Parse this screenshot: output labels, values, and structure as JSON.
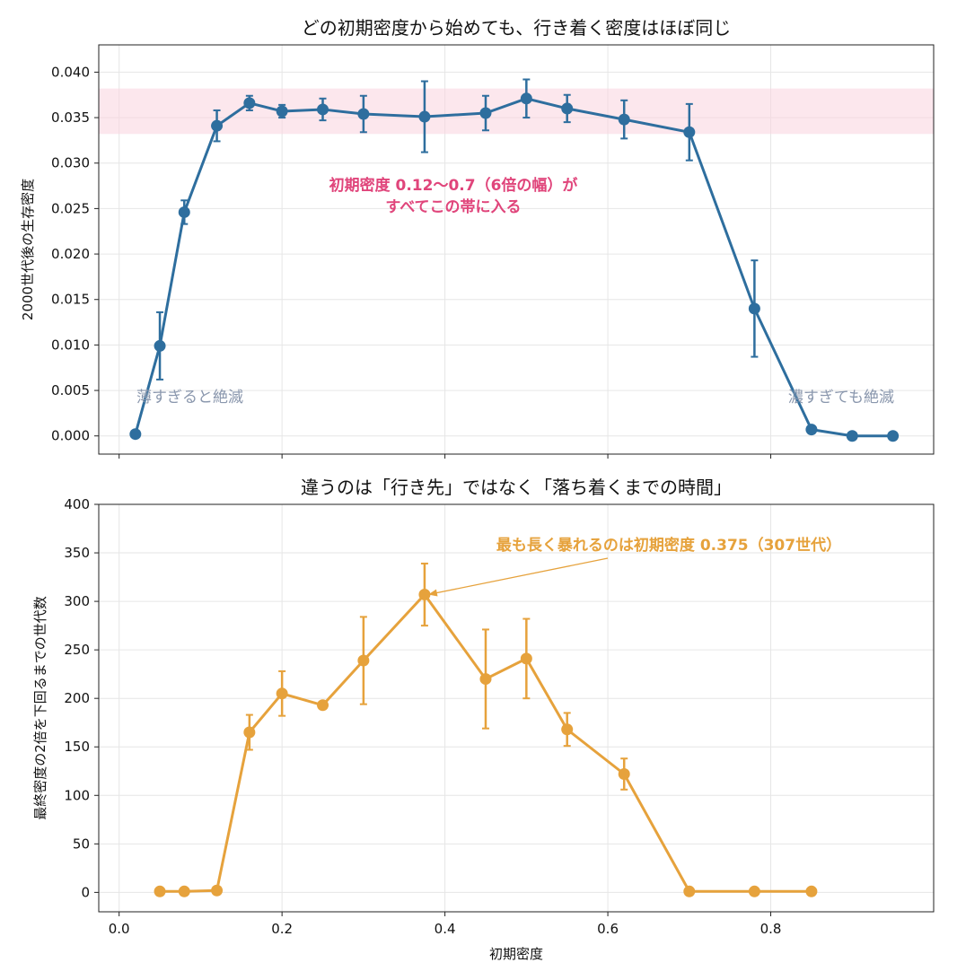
{
  "chart_data": [
    {
      "type": "line",
      "title": "どの初期密度から始めても、行き着く密度はほぼ同じ",
      "xlabel": "",
      "ylabel": "2000世代後の生存密度",
      "xlim": [
        -0.025,
        1.0
      ],
      "ylim": [
        -0.002,
        0.043
      ],
      "x_ticks": [
        0.0,
        0.2,
        0.4,
        0.6,
        0.8
      ],
      "y_ticks": [
        "0.000",
        "0.005",
        "0.010",
        "0.015",
        "0.020",
        "0.025",
        "0.030",
        "0.035",
        "0.040"
      ],
      "grid": true,
      "color": "#2e6e9e",
      "band": {
        "y0": 0.0332,
        "y1": 0.0382,
        "color": "#f9d3de"
      },
      "series": [
        {
          "x": [
            0.02,
            0.05,
            0.08,
            0.12,
            0.16,
            0.2,
            0.25,
            0.3,
            0.375,
            0.45,
            0.5,
            0.55,
            0.62,
            0.7,
            0.78,
            0.85,
            0.9,
            0.95
          ],
          "y": [
            0.0002,
            0.0099,
            0.0246,
            0.0341,
            0.0366,
            0.0357,
            0.0359,
            0.0354,
            0.0351,
            0.0355,
            0.0371,
            0.036,
            0.0348,
            0.0334,
            0.014,
            0.0007,
            0.0,
            0.0
          ],
          "err": [
            0,
            0.0037,
            0.0013,
            0.0017,
            0.0008,
            0.0007,
            0.0012,
            0.002,
            0.0039,
            0.0019,
            0.0021,
            0.0015,
            0.0021,
            0.0031,
            0.0053,
            0,
            0,
            0
          ]
        }
      ],
      "annotations": {
        "band_label_line1": "初期密度 0.12〜0.7（6倍の幅）が",
        "band_label_line2": "すべてこの帯に入る",
        "left_label": "薄すぎると絶滅",
        "right_label": "濃すぎても絶滅"
      }
    },
    {
      "type": "line",
      "title": "違うのは「行き先」ではなく「落ち着くまでの時間」",
      "xlabel": "初期密度",
      "ylabel": "最終密度の2倍を下回るまでの世代数",
      "xlim": [
        -0.025,
        1.0
      ],
      "ylim": [
        -20,
        400
      ],
      "x_ticks": [
        "0.0",
        "0.2",
        "0.4",
        "0.6",
        "0.8"
      ],
      "y_ticks": [
        "0",
        "50",
        "100",
        "150",
        "200",
        "250",
        "300",
        "350",
        "400"
      ],
      "grid": true,
      "color": "#e6a23c",
      "series": [
        {
          "x": [
            0.05,
            0.08,
            0.12,
            0.16,
            0.2,
            0.25,
            0.3,
            0.375,
            0.45,
            0.5,
            0.55,
            0.62,
            0.7,
            0.78,
            0.85
          ],
          "y": [
            1,
            1,
            2,
            165,
            205,
            193,
            239,
            307,
            220,
            241,
            168,
            122,
            1,
            1,
            1
          ],
          "err": [
            0,
            0,
            0,
            18,
            23,
            0,
            45,
            32,
            51,
            41,
            17,
            16,
            0,
            0,
            0
          ]
        }
      ],
      "annotations": {
        "peak_label": "最も長く暴れるのは初期密度 0.375（307世代）",
        "peak_x": 0.375,
        "peak_y": 307
      }
    }
  ]
}
